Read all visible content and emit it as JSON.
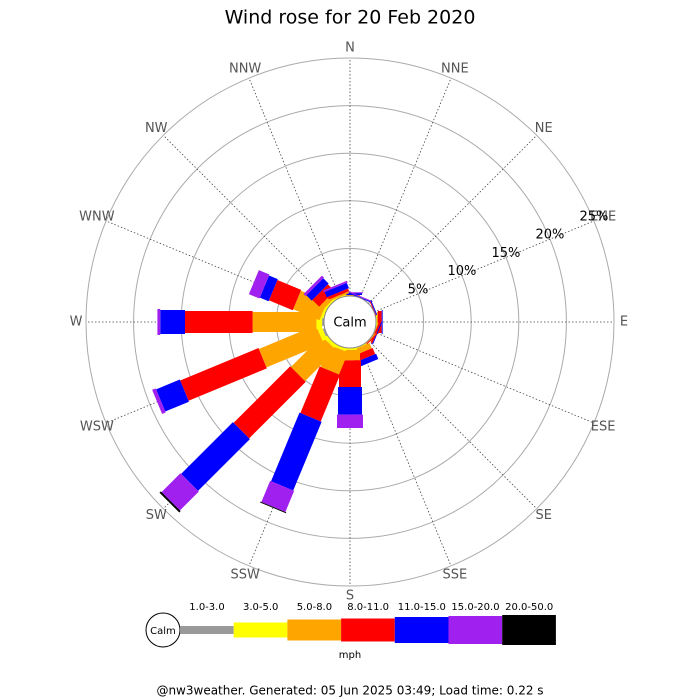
{
  "chart_data": {
    "type": "windrose",
    "title": "Wind rose for 20 Feb 2020",
    "directions": [
      "N",
      "NNE",
      "NE",
      "ENE",
      "E",
      "ESE",
      "SE",
      "SSE",
      "S",
      "SSW",
      "SW",
      "WSW",
      "W",
      "WNW",
      "NW",
      "NNW"
    ],
    "calm_label": "Calm",
    "unit": "mph",
    "caption": "@nw3weather. Generated: 05 Jun 2025 03:49; Load time: 0.22 s",
    "rlim": [
      0,
      25
    ],
    "rticks": [
      {
        "value": 5,
        "label": "5%"
      },
      {
        "value": 10,
        "label": "10%"
      },
      {
        "value": 15,
        "label": "15%"
      },
      {
        "value": 20,
        "label": "20%"
      },
      {
        "value": 25,
        "label": "25%"
      }
    ],
    "grid": true,
    "series": [
      {
        "name": "1.0-3.0",
        "color": "#999999",
        "values": [
          0,
          0,
          0,
          0,
          0,
          0,
          0,
          0,
          0,
          0,
          0,
          0.2,
          0.2,
          0,
          0,
          0
        ]
      },
      {
        "name": "3.0-5.0",
        "color": "#ffff00",
        "values": [
          0,
          0,
          0,
          0,
          0.1,
          0,
          0,
          0.1,
          0.2,
          0.3,
          0.4,
          0.5,
          0.6,
          0.3,
          0.2,
          0.1
        ]
      },
      {
        "name": "5.0-8.0",
        "color": "#ffa500",
        "values": [
          0.1,
          0,
          0,
          0,
          0.1,
          0.1,
          0.1,
          0.6,
          1.1,
          2.5,
          4.6,
          6.5,
          6.7,
          3.0,
          0.5,
          0.2
        ]
      },
      {
        "name": "8.0-11.0",
        "color": "#ff0000",
        "values": [
          0,
          0,
          0,
          0.1,
          0.4,
          0.2,
          0.1,
          0.7,
          2.8,
          5.3,
          8.4,
          8.9,
          7.1,
          2.7,
          1.0,
          0.3
        ]
      },
      {
        "name": "11.0-15.0",
        "color": "#0000ff",
        "values": [
          0.2,
          0.1,
          0,
          0.1,
          0.1,
          0.1,
          0,
          0.6,
          2.9,
          7.8,
          7.7,
          2.7,
          2.6,
          1.0,
          0.8,
          0.6
        ]
      },
      {
        "name": "15.0-20.0",
        "color": "#a020f0",
        "values": [
          0.1,
          0.1,
          0,
          0,
          0,
          0,
          0,
          0,
          1.4,
          2.4,
          2.8,
          0.4,
          0.3,
          1.2,
          0.3,
          0.2
        ]
      },
      {
        "name": "20.0-50.0",
        "color": "#000000",
        "values": [
          0,
          0,
          0,
          0,
          0,
          0,
          0,
          0,
          0,
          0.1,
          0.2,
          0,
          0,
          0,
          0,
          0
        ]
      }
    ]
  }
}
